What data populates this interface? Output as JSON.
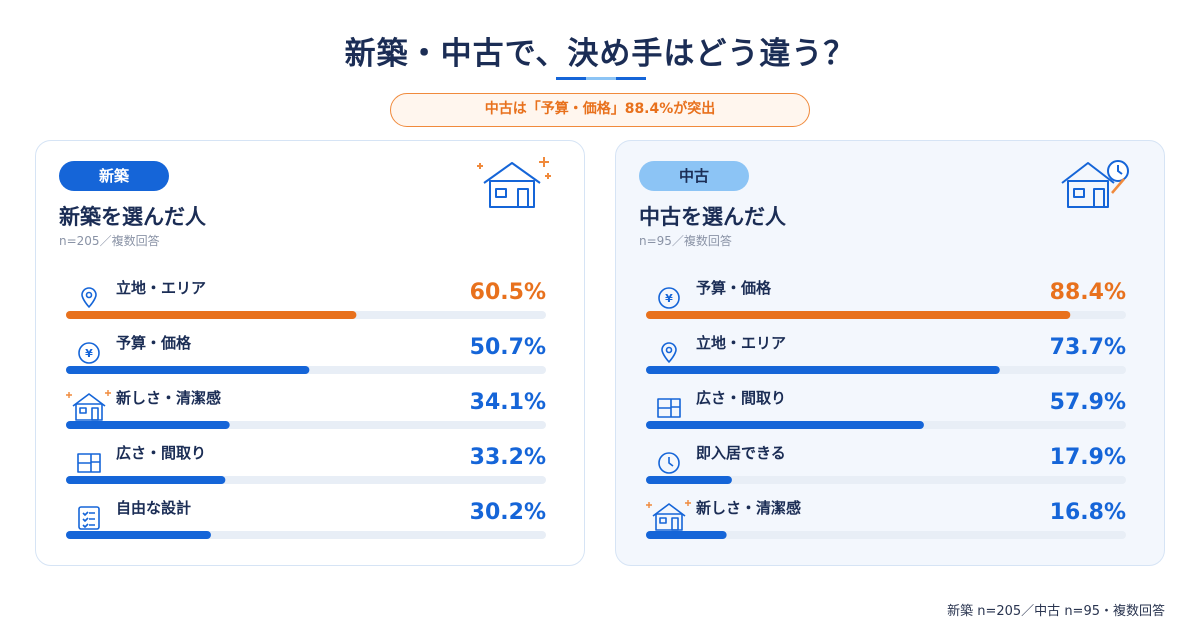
{
  "title": "新築・中古で、決め手はどう違う？",
  "highlight": "中古は「予算・価格」88.4%が突出",
  "footnote": "新築 n=205／中古 n=95・複数回答",
  "colors": {
    "accent": "#e8711d",
    "primary": "#1565d8",
    "light": "#8cc4f5",
    "track": "#e8eef6"
  },
  "chart_data": [
    {
      "type": "bar",
      "pill": "新築",
      "title": "新築を選んだ人",
      "note": "n=205／複数回答",
      "categories": [
        "立地・エリア",
        "予算・価格",
        "新しさ・清潔感",
        "広さ・間取り",
        "自由な設計"
      ],
      "icons": [
        "pin-icon",
        "yen-icon",
        "house-icon",
        "floorplan-icon",
        "checklist-icon"
      ],
      "values": [
        60.5,
        50.7,
        34.1,
        33.2,
        30.2
      ],
      "value_labels": [
        "60.5%",
        "50.7%",
        "34.1%",
        "33.2%",
        "30.2%"
      ],
      "highlight_index": 0,
      "xlim": [
        0,
        100
      ]
    },
    {
      "type": "bar",
      "pill": "中古",
      "title": "中古を選んだ人",
      "note": "n=95／複数回答",
      "categories": [
        "予算・価格",
        "立地・エリア",
        "広さ・間取り",
        "即入居できる",
        "新しさ・清潔感"
      ],
      "icons": [
        "yen-icon",
        "pin-icon",
        "floorplan-icon",
        "clock-icon",
        "house-icon"
      ],
      "values": [
        88.4,
        73.7,
        57.9,
        17.9,
        16.8
      ],
      "value_labels": [
        "88.4%",
        "73.7%",
        "57.9%",
        "17.9%",
        "16.8%"
      ],
      "highlight_index": 0,
      "xlim": [
        0,
        100
      ]
    }
  ]
}
